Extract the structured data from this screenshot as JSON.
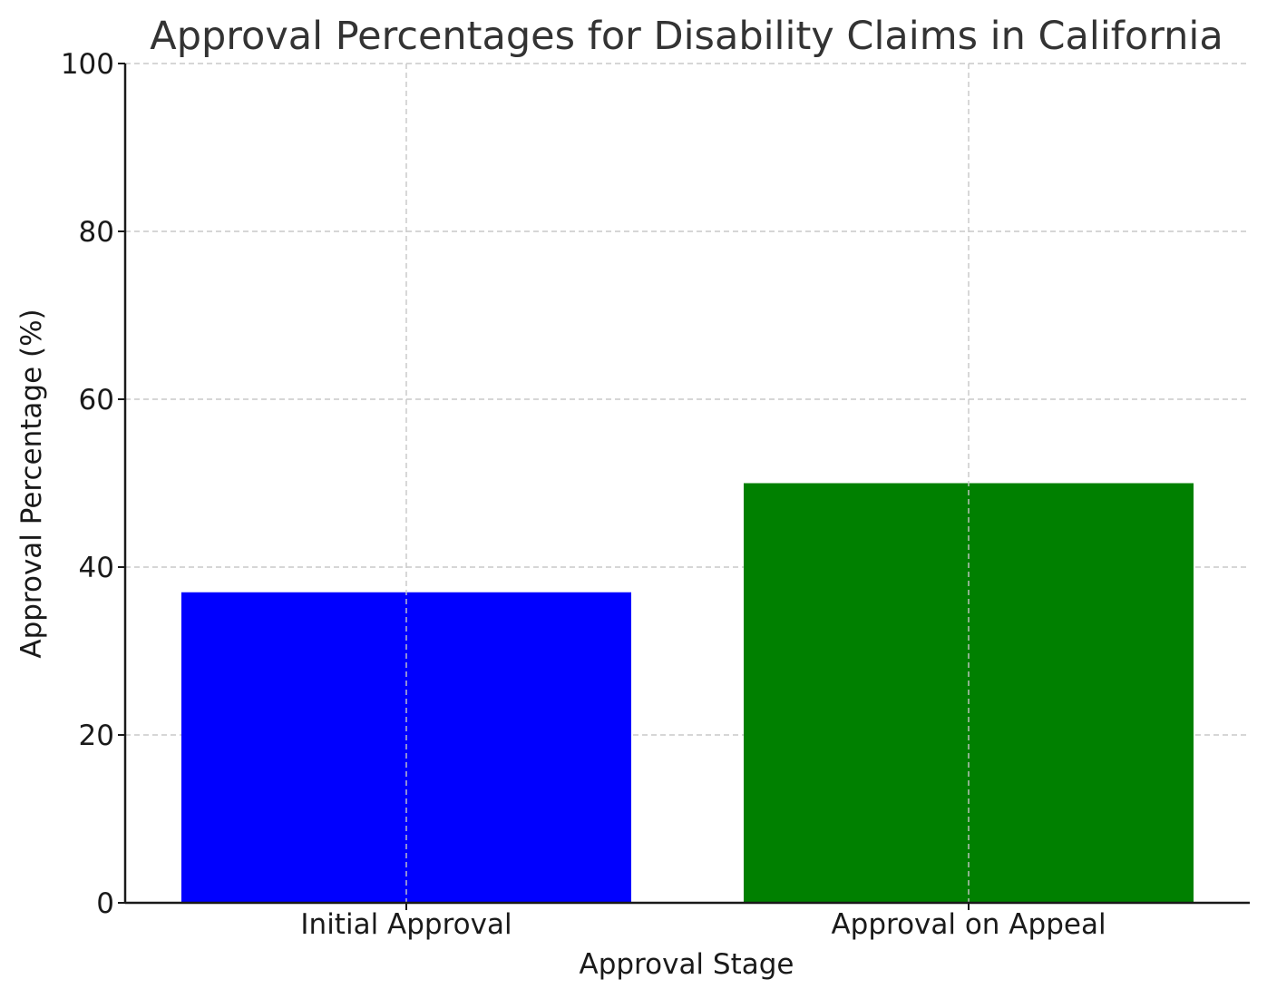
{
  "chart_data": {
    "type": "bar",
    "title": "Approval Percentages for Disability Claims in California",
    "xlabel": "Approval Stage",
    "ylabel": "Approval Percentage (%)",
    "categories": [
      "Initial Approval",
      "Approval on Appeal"
    ],
    "values": [
      37,
      50
    ],
    "colors": [
      "#0000ff",
      "#008000"
    ],
    "ylim": [
      0,
      100
    ],
    "yticks": [
      0,
      20,
      40,
      60,
      80,
      100
    ],
    "ytick_labels": [
      "0",
      "20",
      "40",
      "60",
      "80",
      "100"
    ],
    "grid": true
  }
}
